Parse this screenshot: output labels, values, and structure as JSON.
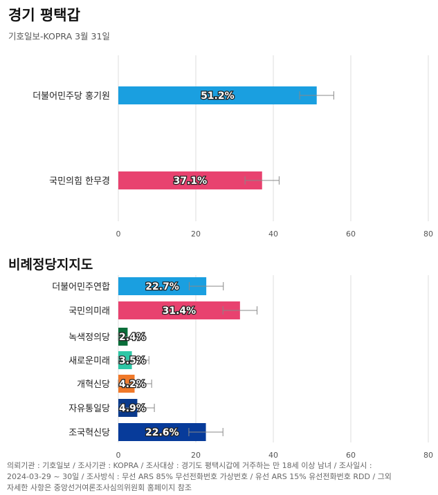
{
  "header": {
    "title": "경기 평택갑",
    "subtitle": "기호일보-KOPRA 3월 31일"
  },
  "section2": {
    "title": "비례정당지지도"
  },
  "footer": {
    "lines": [
      "의뢰기관 : 기호일보 / 조사기관 : KOPRA / 조사대상 : 경기도 평택시갑에 거주하는 만 18세 이상 남녀 / 조사일시 :",
      "2024-03-29 ~ 30일 / 조사방식 : 무선 ARS 85% 무선전화번호 가상번호 / 유선 ARS 15% 유선전화번호 RDD / 그외",
      "자세한 사항은 중앙선거여론조사심의위원회 홈페이지 참조"
    ]
  },
  "chart_data": [
    {
      "type": "bar",
      "orientation": "horizontal",
      "categories": [
        "더불어민주당 홍기원",
        "국민의힘 한무경"
      ],
      "values": [
        51.2,
        37.1
      ],
      "error_margin": [
        4.4,
        4.4
      ],
      "value_labels": [
        "51.2%",
        "37.1%"
      ],
      "colors": [
        "#1a9fe0",
        "#e8426f"
      ],
      "xlim": [
        0,
        80
      ],
      "xticks": [
        "0",
        "20",
        "40",
        "60",
        "80"
      ],
      "grid": true
    },
    {
      "type": "bar",
      "orientation": "horizontal",
      "categories": [
        "더불어민주연합",
        "국민의미래",
        "녹색정의당",
        "새로운미래",
        "개혁신당",
        "자유통일당",
        "조국혁신당"
      ],
      "values": [
        22.7,
        31.4,
        2.4,
        3.5,
        4.2,
        4.9,
        22.6
      ],
      "error_margin": [
        4.4,
        4.4,
        4.4,
        4.4,
        4.4,
        4.4,
        4.4
      ],
      "value_labels": [
        "22.7%",
        "31.4%",
        "2.4%",
        "3.5%",
        "4.2%",
        "4.9%",
        "22.6%"
      ],
      "colors": [
        "#1a9fe0",
        "#e8426f",
        "#0a6e3a",
        "#2ec7a6",
        "#f0792a",
        "#0a3a8c",
        "#073b9a"
      ],
      "xlim": [
        0,
        80
      ],
      "xticks": [
        "0",
        "20",
        "40",
        "60",
        "80"
      ],
      "grid": true
    }
  ]
}
